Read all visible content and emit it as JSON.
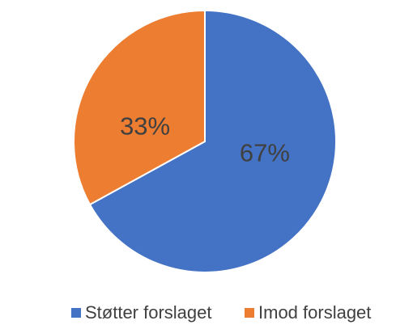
{
  "chart_data": {
    "type": "pie",
    "categories": [
      "Støtter forslaget",
      "Imod forslaget"
    ],
    "values": [
      67,
      33
    ],
    "value_labels": [
      "67%",
      "33%"
    ],
    "colors": [
      "#4472c4",
      "#ed7d31"
    ],
    "legend": "bottom"
  }
}
